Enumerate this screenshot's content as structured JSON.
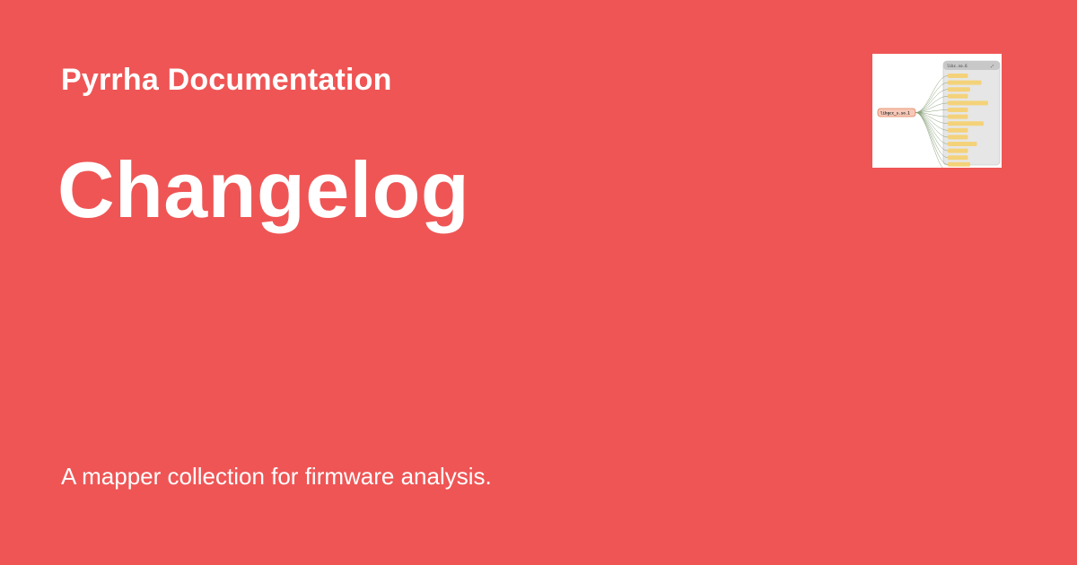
{
  "theme": {
    "background": "#EF5555",
    "text": "#FFFFFF"
  },
  "card": {
    "site_name": "Pyrrha Documentation",
    "page_title": "Changelog",
    "description": "A mapper collection for firmware analysis.",
    "logo": {
      "icon": "call-graph-logo-icon",
      "graph": {
        "source_node": "libgcc_s.so.1",
        "target_panel": "libc.so.6",
        "node_count": 15,
        "colors": {
          "panel": "#E6E6E6",
          "panel_header": "#C8C8C8",
          "node_fill": "#F4D27A",
          "edge": "#8AA07A",
          "source_fill": "#F7C8B8",
          "source_border": "#E2805A"
        }
      }
    }
  }
}
